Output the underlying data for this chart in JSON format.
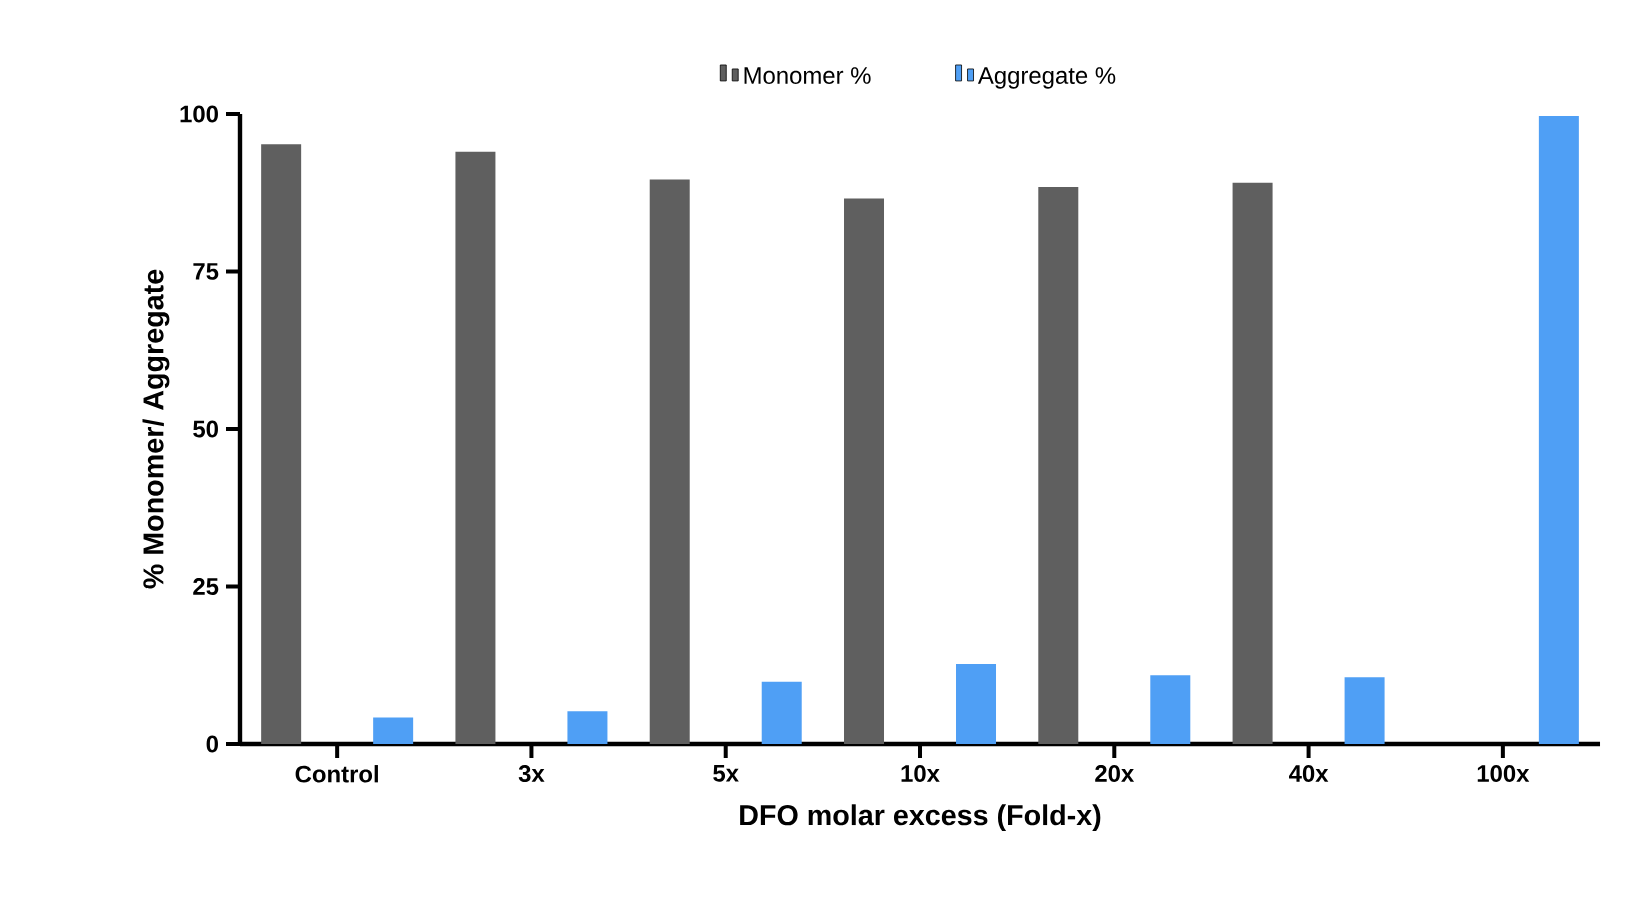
{
  "chart_data": {
    "type": "bar",
    "xlabel": "DFO molar excess (Fold-x)",
    "ylabel": "% Monomer/ Aggregate",
    "categories": [
      "Control",
      "3x",
      "5x",
      "10x",
      "20x",
      "40x",
      "100x"
    ],
    "series": [
      {
        "name": "Monomer %",
        "color": "#5f5f5f",
        "values": [
          95.2,
          94.0,
          89.6,
          86.6,
          88.4,
          89.1,
          0
        ]
      },
      {
        "name": "Aggregate %",
        "color": "#4f9ff5",
        "values": [
          4.2,
          5.2,
          9.9,
          12.7,
          10.9,
          10.6,
          99.7
        ]
      }
    ],
    "ylim": [
      0,
      100
    ],
    "yticks": [
      0,
      25,
      50,
      75,
      100
    ],
    "legend": "top",
    "grid": false
  }
}
